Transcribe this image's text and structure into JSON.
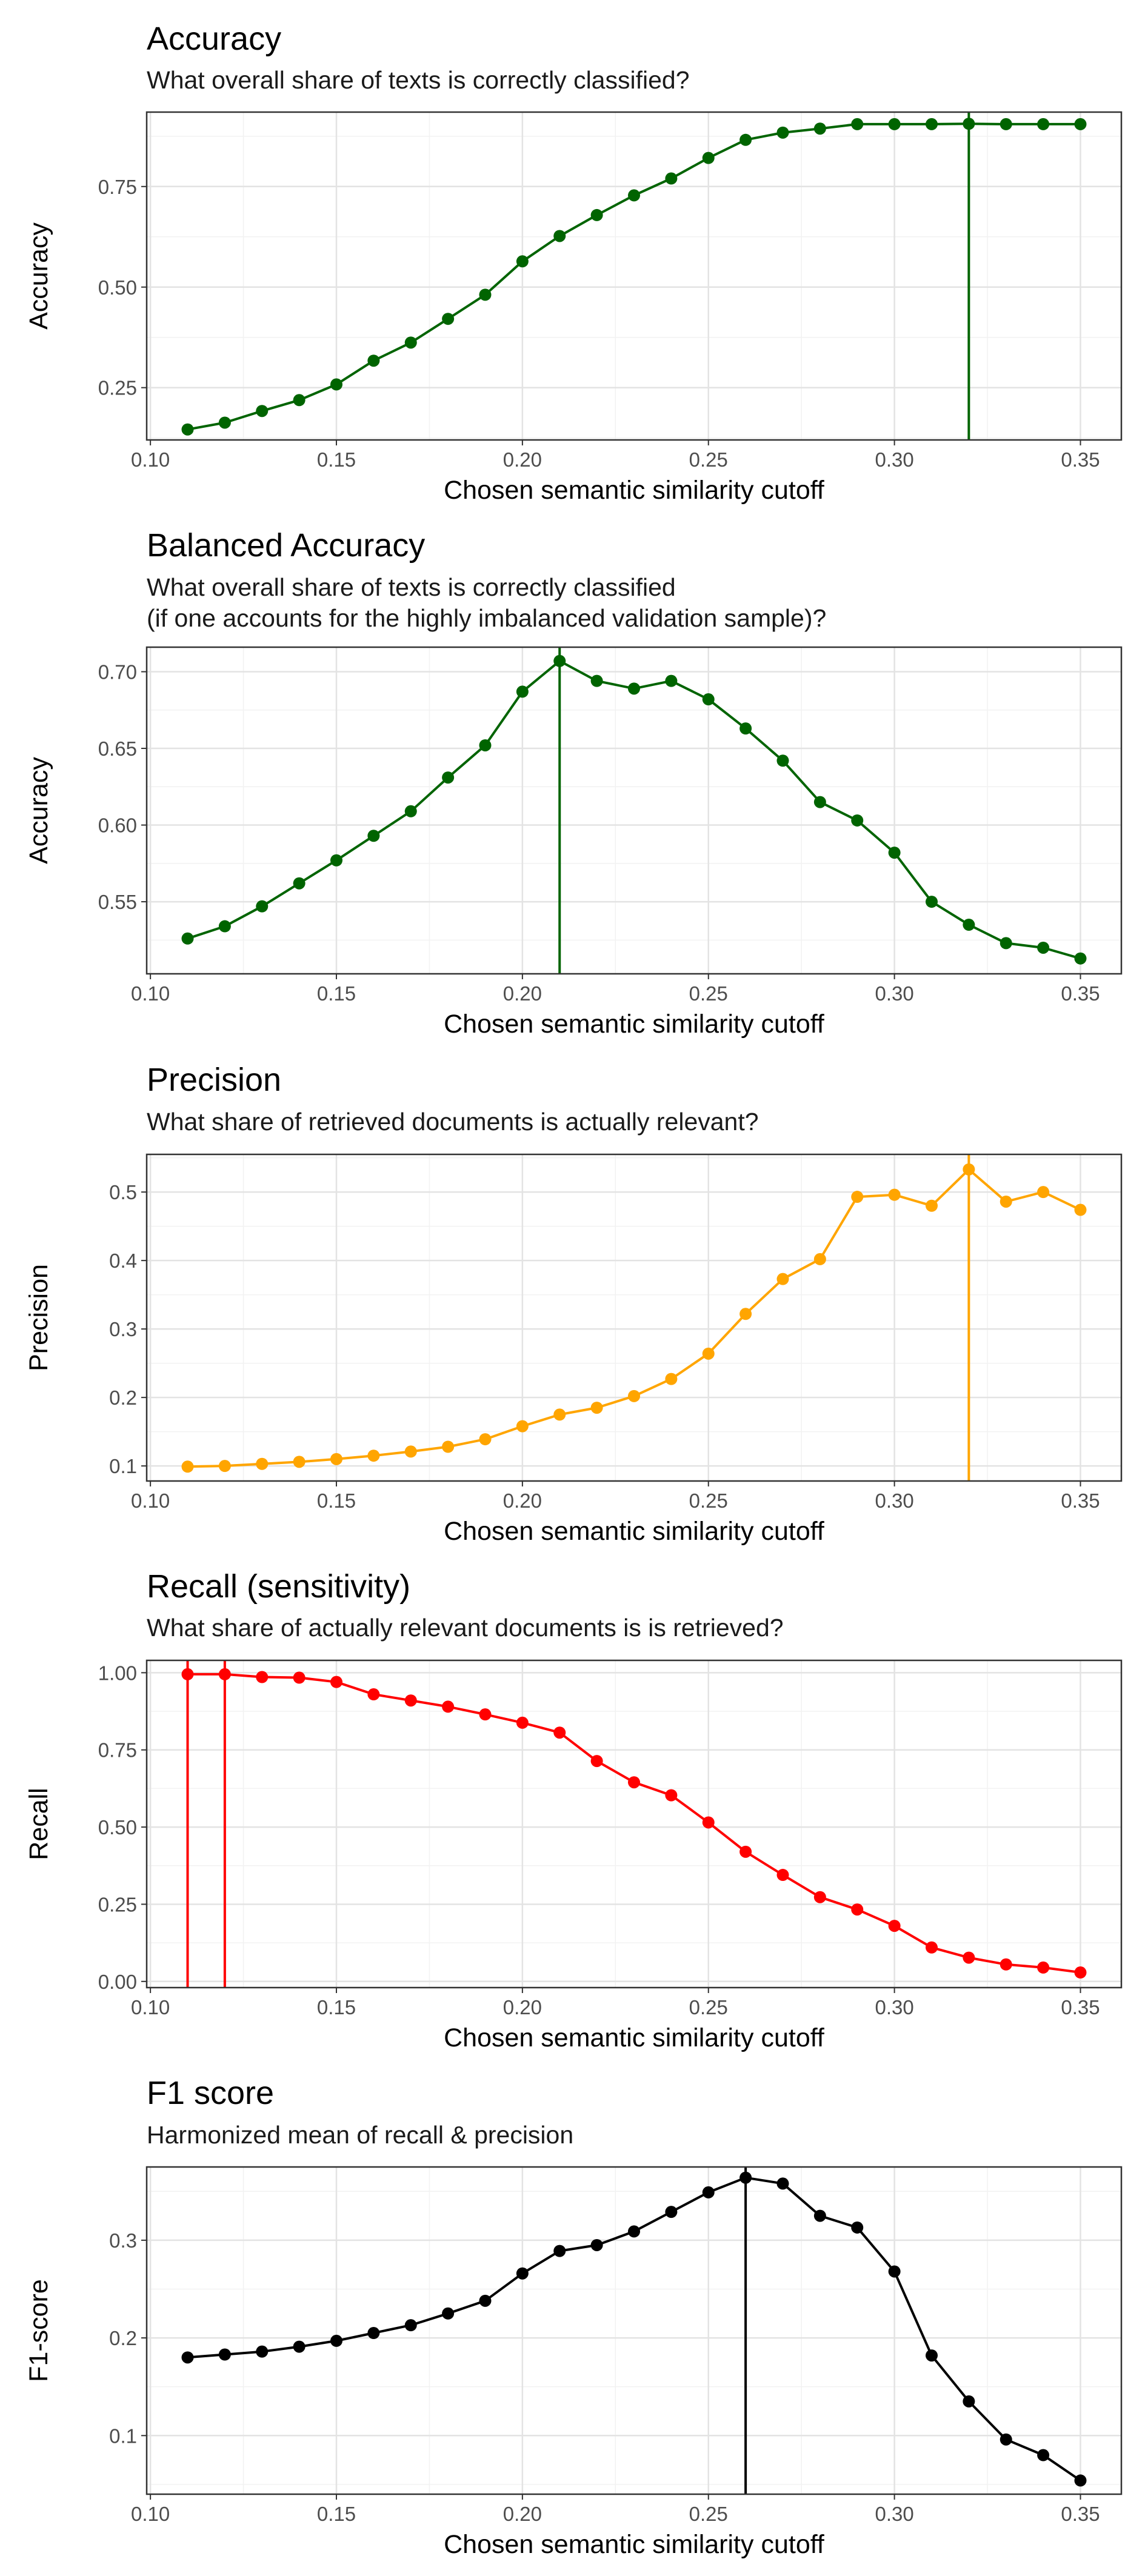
{
  "chart_data": [
    {
      "type": "line",
      "title": "Accuracy",
      "subtitle": "What overall share of texts is correctly classified?",
      "xlabel": "Chosen semantic similarity cutoff",
      "ylabel": "Accuracy",
      "xlim": [
        0.099,
        0.361
      ],
      "ylim": [
        0.12,
        0.935
      ],
      "xticks": [
        0.1,
        0.15,
        0.2,
        0.25,
        0.3,
        0.35
      ],
      "xtick_labels": [
        "0.10",
        "0.15",
        "0.20",
        "0.25",
        "0.30",
        "0.35"
      ],
      "yticks": [
        0.25,
        0.5,
        0.75
      ],
      "ytick_labels": [
        "0.25",
        "0.50",
        "0.75"
      ],
      "color": "#006400",
      "grid": true,
      "x": [
        0.11,
        0.12,
        0.13,
        0.14,
        0.15,
        0.16,
        0.17,
        0.18,
        0.19,
        0.2,
        0.21,
        0.22,
        0.23,
        0.24,
        0.25,
        0.26,
        0.27,
        0.28,
        0.29,
        0.3,
        0.31,
        0.32,
        0.33,
        0.34,
        0.35
      ],
      "values": [
        0.146,
        0.163,
        0.192,
        0.219,
        0.258,
        0.317,
        0.362,
        0.421,
        0.481,
        0.564,
        0.627,
        0.679,
        0.728,
        0.77,
        0.821,
        0.866,
        0.884,
        0.894,
        0.905,
        0.905,
        0.905,
        0.906,
        0.905,
        0.905,
        0.905
      ],
      "highlight_x": [
        0.32
      ]
    },
    {
      "type": "line",
      "title": "Balanced Accuracy",
      "subtitle": "What overall share of texts is correctly classified\n(if one accounts for the highly imbalanced validation sample)?",
      "xlabel": "Chosen semantic similarity cutoff",
      "ylabel": "Accuracy",
      "xlim": [
        0.099,
        0.361
      ],
      "ylim": [
        0.503,
        0.716
      ],
      "xticks": [
        0.1,
        0.15,
        0.2,
        0.25,
        0.3,
        0.35
      ],
      "xtick_labels": [
        "0.10",
        "0.15",
        "0.20",
        "0.25",
        "0.30",
        "0.35"
      ],
      "yticks": [
        0.55,
        0.6,
        0.65,
        0.7
      ],
      "ytick_labels": [
        "0.55",
        "0.60",
        "0.65",
        "0.70"
      ],
      "color": "#006400",
      "grid": true,
      "x": [
        0.11,
        0.12,
        0.13,
        0.14,
        0.15,
        0.16,
        0.17,
        0.18,
        0.19,
        0.2,
        0.21,
        0.22,
        0.23,
        0.24,
        0.25,
        0.26,
        0.27,
        0.28,
        0.29,
        0.3,
        0.31,
        0.32,
        0.33,
        0.34,
        0.35
      ],
      "values": [
        0.526,
        0.534,
        0.547,
        0.562,
        0.577,
        0.593,
        0.609,
        0.631,
        0.652,
        0.687,
        0.707,
        0.694,
        0.689,
        0.694,
        0.682,
        0.663,
        0.642,
        0.615,
        0.603,
        0.582,
        0.55,
        0.535,
        0.523,
        0.52,
        0.513
      ],
      "highlight_x": [
        0.21
      ]
    },
    {
      "type": "line",
      "title": "Precision",
      "subtitle": "What share of retrieved documents is actually relevant?",
      "xlabel": "Chosen semantic similarity cutoff",
      "ylabel": "Precision",
      "xlim": [
        0.099,
        0.361
      ],
      "ylim": [
        0.078,
        0.555
      ],
      "xticks": [
        0.1,
        0.15,
        0.2,
        0.25,
        0.3,
        0.35
      ],
      "xtick_labels": [
        "0.10",
        "0.15",
        "0.20",
        "0.25",
        "0.30",
        "0.35"
      ],
      "yticks": [
        0.1,
        0.2,
        0.3,
        0.4,
        0.5
      ],
      "ytick_labels": [
        "0.1",
        "0.2",
        "0.3",
        "0.4",
        "0.5"
      ],
      "color": "#FFA500",
      "grid": true,
      "x": [
        0.11,
        0.12,
        0.13,
        0.14,
        0.15,
        0.16,
        0.17,
        0.18,
        0.19,
        0.2,
        0.21,
        0.22,
        0.23,
        0.24,
        0.25,
        0.26,
        0.27,
        0.28,
        0.29,
        0.3,
        0.31,
        0.32,
        0.33,
        0.34,
        0.35
      ],
      "values": [
        0.099,
        0.1,
        0.103,
        0.106,
        0.11,
        0.115,
        0.121,
        0.128,
        0.139,
        0.158,
        0.175,
        0.185,
        0.202,
        0.227,
        0.264,
        0.322,
        0.373,
        0.402,
        0.493,
        0.496,
        0.48,
        0.533,
        0.486,
        0.5,
        0.474
      ],
      "highlight_x": [
        0.32
      ]
    },
    {
      "type": "line",
      "title": "Recall (sensitivity)",
      "subtitle": "What share of actually relevant documents is is retrieved?",
      "xlabel": "Chosen semantic similarity cutoff",
      "ylabel": "Recall",
      "xlim": [
        0.099,
        0.361
      ],
      "ylim": [
        -0.02,
        1.04
      ],
      "xticks": [
        0.1,
        0.15,
        0.2,
        0.25,
        0.3,
        0.35
      ],
      "xtick_labels": [
        "0.10",
        "0.15",
        "0.20",
        "0.25",
        "0.30",
        "0.35"
      ],
      "yticks": [
        0,
        0.25,
        0.5,
        0.75,
        1
      ],
      "ytick_labels": [
        "0.00",
        "0.25",
        "0.50",
        "0.75",
        "1.00"
      ],
      "color": "#FF0000",
      "grid": true,
      "x": [
        0.11,
        0.12,
        0.13,
        0.14,
        0.15,
        0.16,
        0.17,
        0.18,
        0.19,
        0.2,
        0.21,
        0.22,
        0.23,
        0.24,
        0.25,
        0.26,
        0.27,
        0.28,
        0.29,
        0.3,
        0.31,
        0.32,
        0.33,
        0.34,
        0.35
      ],
      "values": [
        0.995,
        0.995,
        0.986,
        0.984,
        0.97,
        0.93,
        0.91,
        0.89,
        0.865,
        0.838,
        0.806,
        0.714,
        0.645,
        0.603,
        0.515,
        0.42,
        0.345,
        0.273,
        0.233,
        0.18,
        0.11,
        0.077,
        0.055,
        0.045,
        0.029
      ],
      "highlight_x": [
        0.11,
        0.12
      ]
    },
    {
      "type": "line",
      "title": "F1 score",
      "subtitle": "Harmonized mean of recall & precision",
      "xlabel": "Chosen semantic similarity cutoff",
      "ylabel": "F1-score",
      "xlim": [
        0.099,
        0.361
      ],
      "ylim": [
        0.04,
        0.375
      ],
      "xticks": [
        0.1,
        0.15,
        0.2,
        0.25,
        0.3,
        0.35
      ],
      "xtick_labels": [
        "0.10",
        "0.15",
        "0.20",
        "0.25",
        "0.30",
        "0.35"
      ],
      "yticks": [
        0.1,
        0.2,
        0.3
      ],
      "ytick_labels": [
        "0.1",
        "0.2",
        "0.3"
      ],
      "color": "#000000",
      "grid": true,
      "x": [
        0.11,
        0.12,
        0.13,
        0.14,
        0.15,
        0.16,
        0.17,
        0.18,
        0.19,
        0.2,
        0.21,
        0.22,
        0.23,
        0.24,
        0.25,
        0.26,
        0.27,
        0.28,
        0.29,
        0.3,
        0.31,
        0.32,
        0.33,
        0.34,
        0.35
      ],
      "values": [
        0.18,
        0.183,
        0.186,
        0.191,
        0.197,
        0.205,
        0.213,
        0.225,
        0.238,
        0.266,
        0.289,
        0.295,
        0.309,
        0.329,
        0.349,
        0.364,
        0.358,
        0.325,
        0.313,
        0.268,
        0.182,
        0.135,
        0.096,
        0.08,
        0.054
      ],
      "highlight_x": [
        0.26
      ]
    }
  ]
}
